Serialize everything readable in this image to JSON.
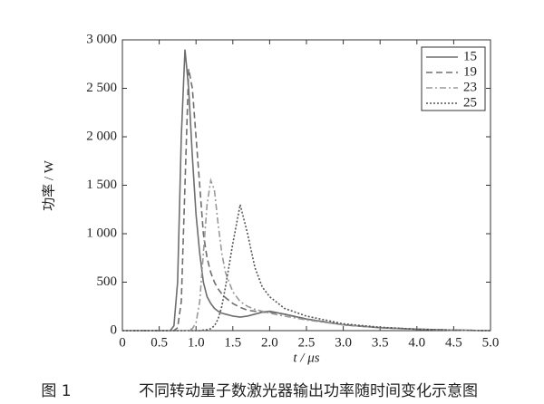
{
  "chart_data": {
    "type": "line",
    "caption_label": "图 1",
    "caption": "不同转动量子数激光器输出功率随时间变化示意图",
    "y_label": "功率 / W",
    "x_label": "t / μs",
    "x": [
      0,
      0.5,
      0.6,
      0.65,
      0.7,
      0.75,
      0.8,
      0.85,
      0.9,
      0.95,
      1.0,
      1.05,
      1.1,
      1.15,
      1.2,
      1.25,
      1.3,
      1.35,
      1.4,
      1.5,
      1.6,
      1.7,
      1.8,
      1.9,
      2.0,
      2.2,
      2.5,
      3.0,
      3.5,
      4.0,
      4.5,
      5.0
    ],
    "series": [
      {
        "name": "15",
        "color": "#6e6e6e",
        "line_style": "solid",
        "values": [
          0,
          0,
          0,
          0,
          50,
          500,
          2000,
          2900,
          2500,
          1800,
          1200,
          800,
          500,
          350,
          280,
          230,
          200,
          180,
          170,
          150,
          140,
          150,
          170,
          190,
          200,
          170,
          120,
          60,
          30,
          15,
          5,
          0
        ]
      },
      {
        "name": "19",
        "color": "#6e6e6e",
        "line_style": "dashed",
        "values": [
          0,
          0,
          0,
          0,
          0,
          30,
          300,
          1500,
          2700,
          2500,
          2000,
          1500,
          1000,
          750,
          600,
          500,
          430,
          380,
          340,
          280,
          240,
          210,
          200,
          190,
          190,
          170,
          120,
          60,
          30,
          15,
          5,
          0
        ]
      },
      {
        "name": "23",
        "color": "#9a9a9a",
        "line_style": "dashdot",
        "values": [
          0,
          0,
          0,
          0,
          0,
          0,
          0,
          0,
          5,
          20,
          80,
          300,
          800,
          1300,
          1550,
          1450,
          1100,
          800,
          600,
          400,
          300,
          250,
          220,
          200,
          180,
          150,
          110,
          60,
          30,
          15,
          5,
          0
        ]
      },
      {
        "name": "25",
        "color": "#555555",
        "line_style": "dotted",
        "values": [
          0,
          0,
          0,
          0,
          0,
          0,
          0,
          0,
          0,
          0,
          0,
          0,
          5,
          10,
          20,
          50,
          120,
          250,
          450,
          900,
          1300,
          1000,
          650,
          450,
          350,
          230,
          150,
          70,
          35,
          15,
          5,
          0
        ]
      }
    ],
    "xlim": [
      0,
      5
    ],
    "xticks": [
      0,
      0.5,
      {
        "value": 1,
        "label": "1.0"
      },
      1.5,
      {
        "value": 2,
        "label": "2.0"
      },
      2.5,
      {
        "value": 3,
        "label": "3.0"
      },
      3.5,
      {
        "value": 4,
        "label": "4.0"
      },
      4.5,
      {
        "value": 5,
        "label": "5.0"
      }
    ],
    "ylim": [
      0,
      3000
    ],
    "yticks": [
      0,
      500,
      {
        "value": 1000,
        "label": "1 000"
      },
      {
        "value": 1500,
        "label": "1 500"
      },
      {
        "value": 2000,
        "label": "2 000"
      },
      {
        "value": 2500,
        "label": "2 500"
      },
      {
        "value": 3000,
        "label": "3 000"
      }
    ],
    "legend": "upper-right"
  }
}
